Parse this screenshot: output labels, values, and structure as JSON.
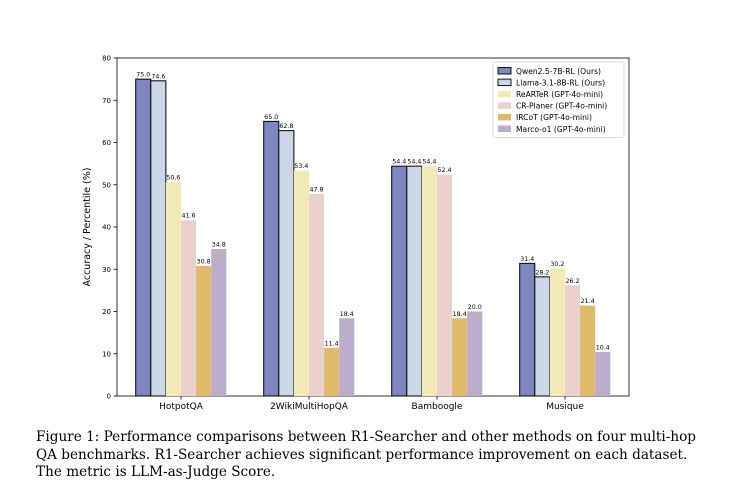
{
  "chart_data": {
    "type": "bar",
    "title": "",
    "xlabel": "",
    "ylabel": "Accuracy / Percentile (%)",
    "ylim": [
      0,
      80
    ],
    "yticks": [
      0,
      10,
      20,
      30,
      40,
      50,
      60,
      70,
      80
    ],
    "grid": false,
    "legend_position": "top-right",
    "categories": [
      "HotpotQA",
      "2WikiMultiHopQA",
      "Bamboogle",
      "Musique"
    ],
    "series": [
      {
        "name": "Qwen2.5-7B-RL (Ours)",
        "color": "#7d86c0",
        "outlined": true,
        "values": [
          75.0,
          65.0,
          54.4,
          31.4
        ],
        "labels": [
          "75.0",
          "65.0",
          "54.4",
          "31.4"
        ]
      },
      {
        "name": "Llama-3.1-8B-RL (Ours)",
        "color": "#cdd6e8",
        "outlined": true,
        "values": [
          74.6,
          62.8,
          54.4,
          28.2
        ],
        "labels": [
          "74.6",
          "62.8",
          "54.4",
          "28.2"
        ]
      },
      {
        "name": "ReARTeR (GPT-4o-mini)",
        "color": "#f3e9b4",
        "outlined": false,
        "values": [
          50.6,
          53.4,
          54.4,
          30.2
        ],
        "labels": [
          "50.6",
          "53.4",
          "54.4",
          "30.2"
        ]
      },
      {
        "name": "CR-Planer (GPT-4o-mini)",
        "color": "#ead1cd",
        "outlined": false,
        "values": [
          41.6,
          47.8,
          52.4,
          26.2
        ],
        "labels": [
          "41.6",
          "47.8",
          "52.4",
          "26.2"
        ]
      },
      {
        "name": "IRCoT (GPT-4o-mini)",
        "color": "#e0b96a",
        "outlined": false,
        "values": [
          30.8,
          11.4,
          18.4,
          21.4
        ],
        "labels": [
          "30.8",
          "11.4",
          "18.4",
          "21.4"
        ]
      },
      {
        "name": "Marco-o1 (GPT-4o-mini)",
        "color": "#bcaecb",
        "outlined": false,
        "values": [
          34.8,
          18.4,
          20.0,
          10.4
        ],
        "labels": [
          "34.8",
          "18.4",
          "20.0",
          "10.4"
        ]
      }
    ]
  },
  "caption": "Figure 1: Performance comparisons between R1-Searcher and other methods on four multi-hop QA benchmarks. R1-Searcher achieves significant performance improvement on each dataset. The metric is LLM-as-Judge Score."
}
